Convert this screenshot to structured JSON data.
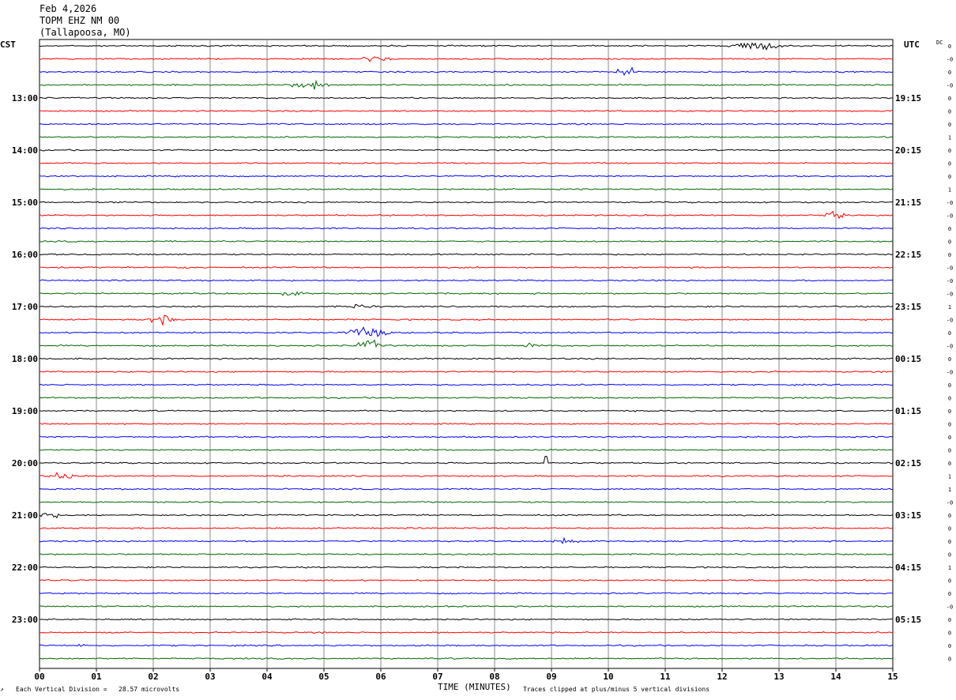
{
  "header": {
    "date": "Feb 4,2026",
    "station": "TOPM EHZ NM 00",
    "location": "(Tallapoosa, MO)"
  },
  "left_tz": "CST",
  "right_tz": "UTC",
  "dc_label": "DC",
  "footer": {
    "scale_note": "Each Vertical Division =   28.57 microvolts",
    "clip_note": "Traces clipped at plus/minus 5 vertical divisions",
    "corner_mark": "↗"
  },
  "colors": {
    "black": "#000000",
    "red": "#ff0000",
    "blue": "#0000ff",
    "green": "#006600",
    "grid": "#888888"
  },
  "chart_data": {
    "type": "line",
    "title": "",
    "xlabel": "TIME (MINUTES)",
    "xlim": [
      0,
      15
    ],
    "x_ticks": [
      "00",
      "01",
      "02",
      "03",
      "04",
      "05",
      "06",
      "07",
      "08",
      "09",
      "10",
      "11",
      "12",
      "13",
      "14",
      "15"
    ],
    "rows_per_hour": 4,
    "row_minutes": 15,
    "row_count": 48,
    "color_cycle": [
      "black",
      "red",
      "blue",
      "green"
    ],
    "left_hour_labels": [
      {
        "row": 4,
        "label": "13:00"
      },
      {
        "row": 8,
        "label": "14:00"
      },
      {
        "row": 12,
        "label": "15:00"
      },
      {
        "row": 16,
        "label": "16:00"
      },
      {
        "row": 20,
        "label": "17:00"
      },
      {
        "row": 24,
        "label": "18:00"
      },
      {
        "row": 28,
        "label": "19:00"
      },
      {
        "row": 32,
        "label": "20:00"
      },
      {
        "row": 36,
        "label": "21:00"
      },
      {
        "row": 40,
        "label": "22:00"
      },
      {
        "row": 44,
        "label": "23:00"
      }
    ],
    "right_hour_labels": [
      {
        "row": 4,
        "label": "19:15"
      },
      {
        "row": 8,
        "label": "20:15"
      },
      {
        "row": 12,
        "label": "21:15"
      },
      {
        "row": 16,
        "label": "22:15"
      },
      {
        "row": 20,
        "label": "23:15"
      },
      {
        "row": 24,
        "label": "00:15"
      },
      {
        "row": 28,
        "label": "01:15"
      },
      {
        "row": 32,
        "label": "02:15"
      },
      {
        "row": 36,
        "label": "03:15"
      },
      {
        "row": 40,
        "label": "04:15"
      },
      {
        "row": 44,
        "label": "05:15"
      }
    ],
    "dc_offsets": [
      "0",
      "-0",
      "0",
      "-0",
      "0",
      "0",
      "0",
      "1",
      "0",
      "0",
      "0",
      "1",
      "-0",
      "-0",
      "0",
      "0",
      "0",
      "-0",
      "-0",
      "-0",
      "1",
      "-0",
      "0",
      "-0",
      "0",
      "-0",
      "0",
      "0",
      "0",
      "0",
      "0",
      "0",
      "0",
      "1",
      "1",
      "-0",
      "0",
      "0",
      "0",
      "0",
      "1",
      "0",
      "0",
      "-0",
      "0",
      "0",
      "0",
      "0"
    ],
    "events": [
      {
        "row": 0,
        "start_min": 12.1,
        "end_min": 13.8,
        "amplitude": 1.0
      },
      {
        "row": 1,
        "start_min": 5.6,
        "end_min": 6.6,
        "amplitude": 0.6
      },
      {
        "row": 2,
        "start_min": 10.1,
        "end_min": 10.9,
        "amplitude": 0.8
      },
      {
        "row": 3,
        "start_min": 4.4,
        "end_min": 5.6,
        "amplitude": 0.9
      },
      {
        "row": 13,
        "start_min": 13.8,
        "end_min": 14.4,
        "amplitude": 0.9
      },
      {
        "row": 17,
        "start_min": 2.5,
        "end_min": 2.9,
        "amplitude": 0.25
      },
      {
        "row": 19,
        "start_min": 4.2,
        "end_min": 5.0,
        "amplitude": 0.35
      },
      {
        "row": 20,
        "start_min": 5.4,
        "end_min": 6.3,
        "amplitude": 0.35
      },
      {
        "row": 21,
        "start_min": 1.9,
        "end_min": 2.8,
        "amplitude": 1.0
      },
      {
        "row": 22,
        "start_min": 5.3,
        "end_min": 6.9,
        "amplitude": 1.0
      },
      {
        "row": 23,
        "start_min": 5.5,
        "end_min": 6.6,
        "amplitude": 1.0
      },
      {
        "row": 23,
        "start_min": 8.5,
        "end_min": 9.1,
        "amplitude": 0.45
      },
      {
        "row": 33,
        "start_min": 0.1,
        "end_min": 1.1,
        "amplitude": 0.6
      },
      {
        "row": 36,
        "start_min": 0.0,
        "end_min": 0.6,
        "amplitude": 0.8
      },
      {
        "row": 38,
        "start_min": 9.0,
        "end_min": 9.8,
        "amplitude": 0.8
      },
      {
        "row": 46,
        "start_min": 0.6,
        "end_min": 1.0,
        "amplitude": 0.25
      }
    ],
    "spikes": [
      {
        "row": 32,
        "minute": 8.9,
        "amplitude": 0.6
      }
    ]
  }
}
